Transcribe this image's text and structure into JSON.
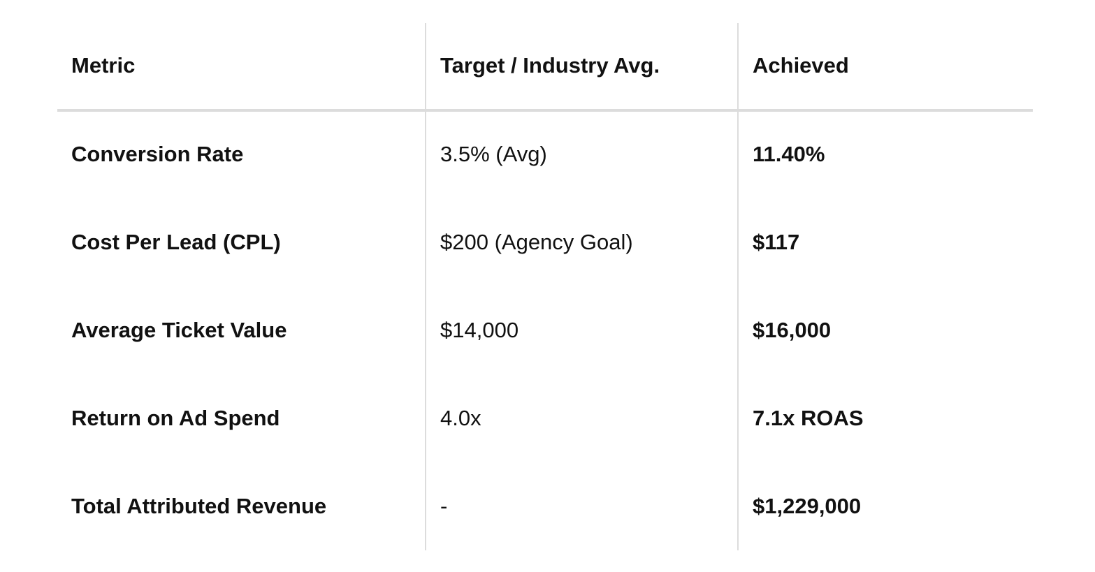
{
  "table": {
    "headers": [
      "Metric",
      "Target / Industry Avg.",
      "Achieved"
    ],
    "rows": [
      [
        "Conversion Rate",
        "3.5% (Avg)",
        "11.40%"
      ],
      [
        "Cost Per Lead (CPL)",
        "$200 (Agency Goal)",
        "$117"
      ],
      [
        "Average Ticket Value",
        "$14,000",
        "$16,000"
      ],
      [
        "Return on Ad Spend",
        "4.0x",
        "7.1x ROAS"
      ],
      [
        "Total Attributed Revenue",
        "-",
        "$1,229,000"
      ]
    ]
  }
}
